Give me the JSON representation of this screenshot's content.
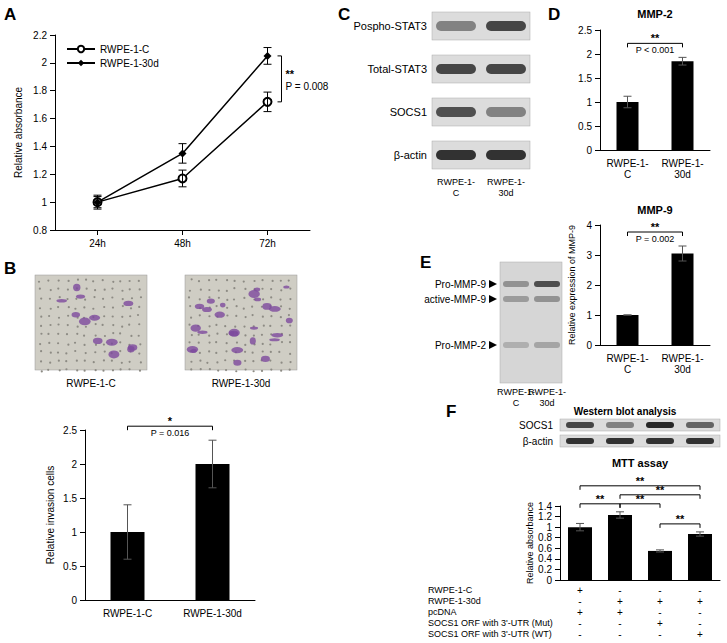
{
  "panel_letters": [
    "A",
    "B",
    "C",
    "D",
    "E",
    "F"
  ],
  "chart_data": [
    {
      "type": "line",
      "ylabel": "Relative absorbance",
      "categories": [
        "24h",
        "48h",
        "72h"
      ],
      "series": [
        {
          "name": "RWPE-1-C",
          "color": "#000000",
          "marker": "circle-open",
          "values": [
            1,
            1.17,
            1.72
          ],
          "errors": [
            0.05,
            0.06,
            0.07
          ]
        },
        {
          "name": "RWPE-1-30d",
          "color": "#000000",
          "marker": "diamond",
          "values": [
            1,
            1.35,
            2.05
          ],
          "errors": [
            0.04,
            0.07,
            0.06
          ]
        }
      ],
      "ylim": [
        0.8,
        2.2
      ],
      "yticks": [
        0.8,
        1,
        1.2,
        1.4,
        1.6,
        1.8,
        2,
        2.2
      ],
      "grid": false,
      "legend": "upper left",
      "annotations": [
        {
          "text": "**",
          "label": "P = 0.008",
          "between": [
            "RWPE-1-C",
            "RWPE-1-30d"
          ]
        }
      ]
    },
    {
      "type": "bar",
      "ylabel": "Relative invasion cells",
      "categories": [
        "RWPE-1-C",
        "RWPE-1-30d"
      ],
      "values": [
        1,
        2
      ],
      "errors": [
        0.4,
        0.35
      ],
      "color": "#000000",
      "ylim": [
        0,
        2.5
      ],
      "yticks": [
        0,
        0.5,
        1,
        1.5,
        2,
        2.5
      ],
      "grid": false,
      "annotations": [
        {
          "text": "*",
          "label": "P = 0.016",
          "between": [
            1,
            2
          ]
        }
      ]
    },
    {
      "type": "bar",
      "title": "MMP-2",
      "categories": [
        "RWPE-1-C",
        "RWPE-1-30d"
      ],
      "values": [
        1,
        1.85
      ],
      "errors": [
        0.12,
        0.08
      ],
      "color": "#000000",
      "ylim": [
        0,
        2.5
      ],
      "yticks": [
        0,
        0.5,
        1,
        1.5,
        2,
        2.5
      ],
      "grid": false,
      "annotations": [
        {
          "text": "**",
          "label": "P < 0.001",
          "between": [
            1,
            2
          ]
        }
      ]
    },
    {
      "type": "bar",
      "title": "MMP-9",
      "ylabel": "Relative expression of MMP-9",
      "categories": [
        "RWPE-1-C",
        "RWPE-1-30d"
      ],
      "values": [
        1,
        3.05
      ],
      "errors": [
        0,
        0.25
      ],
      "color": "#000000",
      "ylim": [
        0,
        4
      ],
      "yticks": [
        0,
        1,
        2,
        3,
        4
      ],
      "grid": false,
      "annotations": [
        {
          "text": "**",
          "label": "P = 0.002",
          "between": [
            1,
            2
          ]
        }
      ]
    },
    {
      "type": "bar",
      "title": "MTT assay",
      "ylabel": "Relative absorbance",
      "categories": [
        null,
        null,
        null,
        null
      ],
      "values": [
        1,
        1.23,
        0.55,
        0.87
      ],
      "errors": [
        0.07,
        0.06,
        0.02,
        0.04
      ],
      "color": "#000000",
      "ylim": [
        0,
        1.4
      ],
      "yticks": [
        0,
        0.2,
        0.4,
        0.6,
        0.8,
        1,
        1.2,
        1.4
      ],
      "grid": false,
      "annotations": [
        {
          "text": "**",
          "between": [
            1,
            2
          ]
        },
        {
          "text": "**",
          "between": [
            2,
            3
          ]
        },
        {
          "text": "**",
          "between": [
            3,
            4
          ]
        },
        {
          "text": "**",
          "between": [
            2,
            4
          ]
        },
        {
          "text": "**",
          "between": [
            1,
            4
          ]
        }
      ]
    }
  ],
  "images": {
    "labels": [
      "RWPE-1-C",
      "RWPE-1-30d"
    ]
  },
  "blots": [
    {
      "rows": [
        {
          "label": "Pospho-STAT3",
          "intensity": [
            0.45,
            0.75
          ]
        },
        {
          "label": "Total-STAT3",
          "intensity": [
            0.75,
            0.75
          ]
        },
        {
          "label": "SOCS1",
          "intensity": [
            0.7,
            0.45
          ]
        },
        {
          "label": "β-actin",
          "intensity": [
            0.85,
            0.85
          ]
        }
      ],
      "lanes": [
        "RWPE-1-C",
        "RWPE-1-30d"
      ]
    },
    {
      "rows": [
        {
          "label": "Pro-MMP-9",
          "intensity": [
            0.35,
            0.7
          ]
        },
        {
          "label": "active-MMP-9",
          "intensity": [
            0.3,
            0.35
          ]
        },
        {
          "label": "Pro-MMP-2",
          "intensity": [
            0.2,
            0.25
          ]
        }
      ],
      "lanes": [
        "RWPE-1-C",
        "RWPE-1-30d"
      ]
    },
    {
      "title": "Western blot analysis",
      "rows": [
        {
          "label": "SOCS1",
          "intensity": [
            0.75,
            0.45,
            0.9,
            0.6
          ]
        },
        {
          "label": "β-actin",
          "intensity": [
            0.85,
            0.85,
            0.85,
            0.85
          ]
        }
      ]
    }
  ],
  "conditions": {
    "rows": [
      {
        "label": "RWPE-1-C",
        "marks": [
          "+",
          "-",
          "-",
          "-"
        ]
      },
      {
        "label": "RWPE-1-30d",
        "marks": [
          "-",
          "+",
          "+",
          "+"
        ]
      },
      {
        "label": "pcDNA",
        "marks": [
          "+",
          "+",
          "-",
          "-"
        ]
      },
      {
        "label": "SOCS1 ORF with 3'-UTR (Mut)",
        "marks": [
          "-",
          "-",
          "+",
          "-"
        ]
      },
      {
        "label": "SOCS1 ORF with 3'-UTR (WT)",
        "marks": [
          "-",
          "-",
          "-",
          "+"
        ]
      }
    ]
  }
}
